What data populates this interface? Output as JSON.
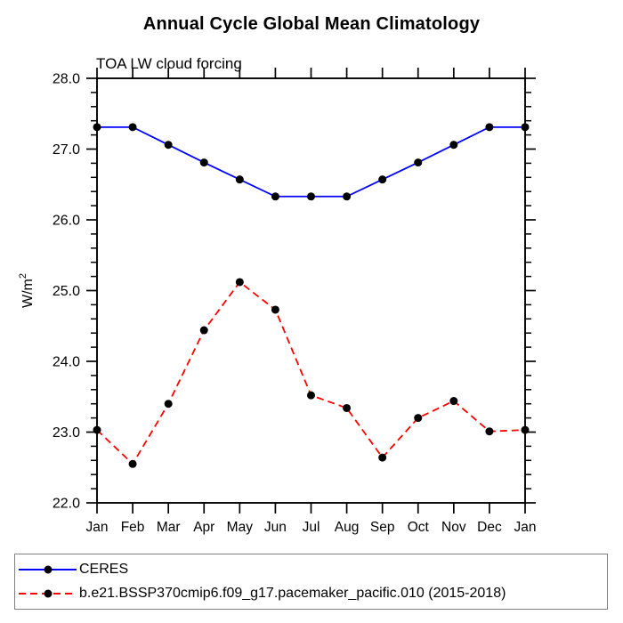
{
  "header": {
    "title": "Annual Cycle Global Mean Climatology",
    "subtitle": "TOA LW cloud forcing"
  },
  "colors": {
    "axis": "#000000",
    "marker": "#000000",
    "ceres_line": "#0000ff",
    "model_line": "#ff0000",
    "legend_border": "#808080"
  },
  "chart_data": {
    "type": "line",
    "title": "Annual Cycle Global Mean Climatology",
    "subtitle": "TOA LW cloud forcing",
    "xlabel": "",
    "ylabel_base": "W/m",
    "ylabel_exp": "2",
    "categories": [
      "Jan",
      "Feb",
      "Mar",
      "Apr",
      "May",
      "Jun",
      "Jul",
      "Aug",
      "Sep",
      "Oct",
      "Nov",
      "Dec",
      "Jan"
    ],
    "ylim": [
      22.0,
      28.0
    ],
    "ytick_major": 1.0,
    "ytick_minor": 0.2,
    "ytick_labels": [
      "22.0",
      "23.0",
      "24.0",
      "25.0",
      "26.0",
      "27.0",
      "28.0"
    ],
    "grid": false,
    "legend_position": "bottom-left-box",
    "series": [
      {
        "name": "CERES",
        "color": "#0000ff",
        "line_style": "solid",
        "marker": "filled-circle",
        "marker_color": "#000000",
        "values": [
          27.31,
          27.31,
          27.06,
          26.81,
          26.57,
          26.33,
          26.33,
          26.33,
          26.57,
          26.81,
          27.06,
          27.31,
          27.31
        ]
      },
      {
        "name": "b.e21.BSSP370cmip6.f09_g17.pacemaker_pacific.010 (2015-2018)",
        "color": "#ff0000",
        "line_style": "dashed",
        "marker": "filled-circle",
        "marker_color": "#000000",
        "values": [
          23.03,
          22.55,
          23.4,
          24.44,
          25.12,
          24.73,
          23.52,
          23.34,
          22.64,
          23.2,
          23.44,
          23.01,
          23.03
        ]
      }
    ]
  }
}
